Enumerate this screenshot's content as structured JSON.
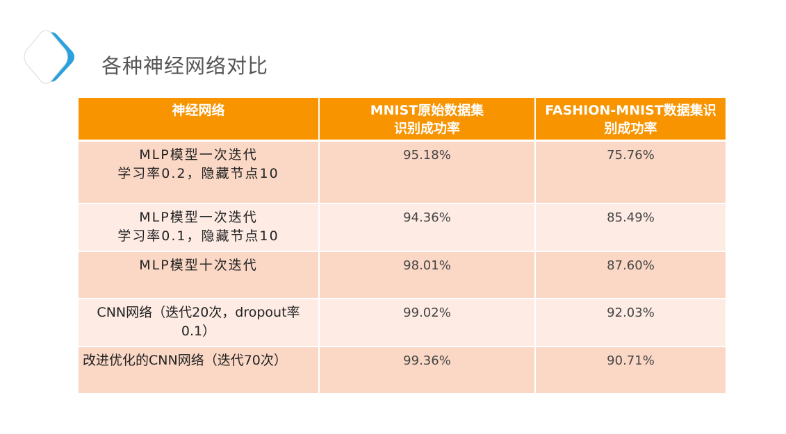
{
  "title": "各种神经网络对比",
  "colors": {
    "header_bg": "#f79400",
    "row_odd": "#fbd8c6",
    "row_even": "#fdebe4",
    "logo_blue": "#2aa0dc"
  },
  "logo_icon": "rounded-diamond-logo",
  "table": {
    "headers": [
      [
        "神经网络"
      ],
      [
        "MNIST原始数据集",
        "识别成功率"
      ],
      [
        "FASHION-MNIST数据集识",
        "别成功率"
      ]
    ],
    "rows": [
      {
        "name": [
          "MLP模型一次迭代",
          "学习率0.2，隐藏节点10"
        ],
        "mnist": "95.18%",
        "fashion": "75.76%"
      },
      {
        "name": [
          "MLP模型一次迭代",
          "学习率0.1，隐藏节点10"
        ],
        "mnist": "94.36%",
        "fashion": "85.49%"
      },
      {
        "name": [
          "MLP模型十次迭代"
        ],
        "mnist": "98.01%",
        "fashion": "87.60%"
      },
      {
        "name": [
          "CNN网络（迭代20次，dropout率",
          "0.1）"
        ],
        "mnist": "99.02%",
        "fashion": "92.03%"
      },
      {
        "name": [
          "改进优化的CNN网络（迭代70次）"
        ],
        "mnist": "99.36%",
        "fashion": "90.71%"
      }
    ]
  }
}
